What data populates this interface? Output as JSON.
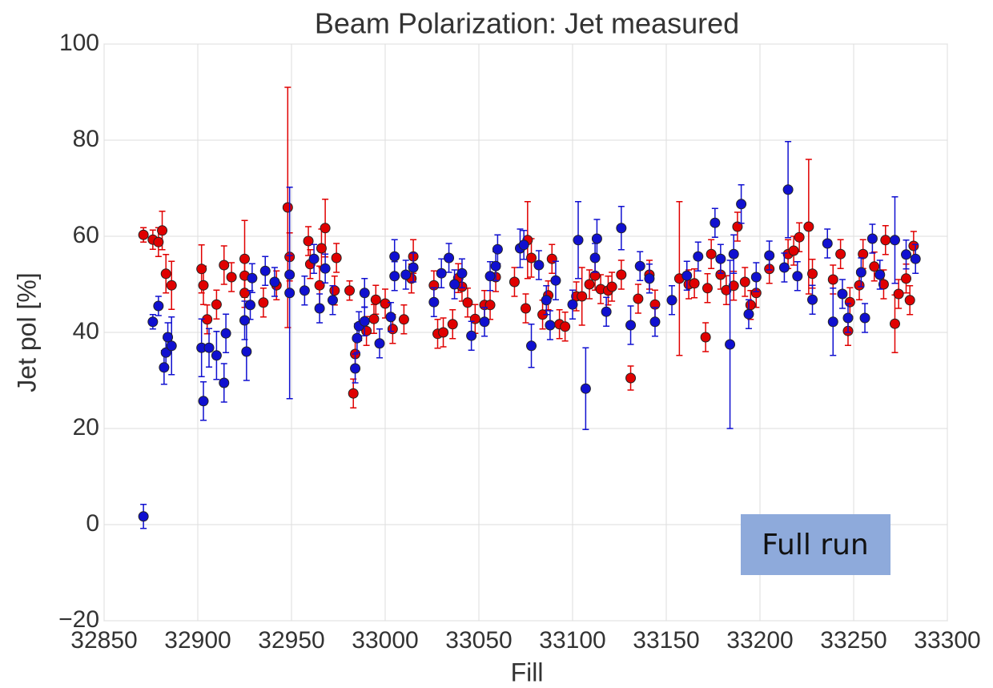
{
  "chart_data": {
    "type": "scatter",
    "title": "Beam Polarization: Jet measured",
    "xlabel": "Fill",
    "ylabel": "Jet pol [%]",
    "annotation": "Full run",
    "xlim": [
      32850,
      33300
    ],
    "xticks": [
      32850,
      32900,
      32950,
      33000,
      33050,
      33100,
      33150,
      33200,
      33250,
      33300
    ],
    "ylim": [
      -20,
      100
    ],
    "yticks": [
      {
        "value": -20,
        "label": "−20"
      },
      0,
      20,
      40,
      60,
      80,
      100
    ],
    "grid": true,
    "series": [
      {
        "color": "#e00000",
        "x": [
          32871,
          32876,
          32879,
          32881,
          32883,
          32886,
          32902,
          32903,
          32905,
          32910,
          32914,
          32918,
          32925,
          32925,
          32925,
          32935,
          32942,
          32948,
          32949,
          32959,
          32960,
          32965,
          32966,
          32968,
          32973,
          32974,
          32981,
          32983,
          32984,
          32990,
          32994,
          32995,
          33000,
          33004,
          33010,
          33014,
          33015,
          33026,
          33028,
          33031,
          33036,
          33039,
          33041,
          33044,
          33048,
          33053,
          33056,
          33059,
          33069,
          33075,
          33076,
          33078,
          33084,
          33087,
          33089,
          33093,
          33096,
          33102,
          33105,
          33109,
          33112,
          33115,
          33119,
          33121,
          33126,
          33131,
          33135,
          33141,
          33144,
          33157,
          33162,
          33165,
          33171,
          33172,
          33174,
          33179,
          33182,
          33186,
          33188,
          33192,
          33195,
          33198,
          33205,
          33215,
          33218,
          33221,
          33226,
          33228,
          33239,
          33243,
          33247,
          33248,
          33253,
          33255,
          33261,
          33266,
          33267,
          33272,
          33274,
          33278,
          33280,
          33282
        ],
        "values": [
          60.3,
          59.3,
          58.8,
          61.2,
          52.2,
          49.8,
          53.2,
          49.8,
          42.7,
          45.8,
          54,
          51.5,
          51.8,
          55.3,
          48.2,
          46.2,
          49.8,
          66,
          55.7,
          59,
          54.2,
          49.8,
          57.5,
          61.7,
          48.7,
          55.5,
          48.7,
          27.3,
          35.5,
          40.3,
          42.8,
          46.8,
          46,
          40.7,
          42.7,
          51.2,
          55.8,
          49.8,
          39.7,
          40,
          41.7,
          51.3,
          49.5,
          46.2,
          42.8,
          45.7,
          45.7,
          51.5,
          50.5,
          45,
          59.2,
          55.5,
          43.7,
          47.7,
          55.3,
          41.7,
          41.2,
          47.5,
          47.5,
          50,
          51.8,
          49,
          48.7,
          49.5,
          52,
          30.5,
          47,
          52,
          45.8,
          51.2,
          50,
          50.2,
          39,
          49.2,
          56.3,
          52,
          48.8,
          49.7,
          62,
          50.5,
          45.7,
          48.2,
          53.2,
          56.3,
          57,
          59.8,
          62,
          52.2,
          51,
          56.3,
          40.3,
          46.3,
          49.8,
          56.3,
          53.7,
          50,
          59.2,
          41.8,
          48,
          51.2,
          46.7,
          58
        ],
        "errors": [
          1.5,
          2,
          3,
          4,
          4,
          5,
          5,
          4,
          3,
          3,
          4,
          3,
          4,
          8,
          3,
          3,
          3,
          25,
          5,
          3,
          3,
          4,
          4,
          6,
          3,
          3,
          2,
          3,
          3,
          3,
          3,
          3,
          3,
          3,
          3,
          3,
          3.5,
          3,
          3,
          3,
          3,
          3,
          3,
          3,
          3,
          3,
          3,
          3,
          3,
          3,
          8,
          4,
          3,
          3,
          3,
          3,
          3,
          3,
          6,
          3,
          3,
          3,
          3,
          3,
          3,
          2.5,
          3,
          3,
          3,
          16,
          3,
          3,
          3,
          3,
          3,
          3,
          3,
          3,
          3,
          3,
          3,
          3,
          3,
          3,
          3,
          3,
          14,
          3,
          3,
          3,
          3,
          3,
          3,
          3,
          3,
          3,
          3,
          6,
          3,
          3,
          3,
          3
        ]
      },
      {
        "color": "#1010d0",
        "x": [
          32871,
          32876,
          32879,
          32882,
          32883,
          32884,
          32886,
          32903,
          32902,
          32906,
          32910,
          32914,
          32915,
          32926,
          32925,
          32928,
          32929,
          32936,
          32941,
          32949,
          32949,
          32957,
          32962,
          32965,
          32968,
          32972,
          32984,
          32985,
          32986,
          32989,
          32989,
          32997,
          33003,
          33005,
          33005,
          33011,
          33015,
          33026,
          33030,
          33034,
          33037,
          33041,
          33046,
          33053,
          33056,
          33059,
          33060,
          33072,
          33074,
          33078,
          33082,
          33086,
          33088,
          33091,
          33100,
          33103,
          33107,
          33112,
          33113,
          33118,
          33126,
          33131,
          33136,
          33141,
          33144,
          33153,
          33161,
          33167,
          33176,
          33179,
          33184,
          33186,
          33190,
          33194,
          33198,
          33205,
          33213,
          33215,
          33220,
          33228,
          33236,
          33239,
          33244,
          33247,
          33254,
          33256,
          33260,
          33264,
          33272,
          33278,
          33283
        ],
        "values": [
          1.7,
          42.2,
          45.5,
          32.7,
          35.8,
          39,
          37.2,
          25.7,
          36.8,
          36.8,
          35.2,
          29.5,
          39.8,
          36,
          42.5,
          45.7,
          51.3,
          52.8,
          50.5,
          48.2,
          52,
          48.7,
          55.3,
          45,
          53.3,
          46.7,
          32.5,
          38.8,
          41.3,
          42.3,
          48.2,
          37.7,
          43.2,
          55.8,
          51.7,
          52,
          53.5,
          46.3,
          52.3,
          55.5,
          50,
          52.3,
          39.3,
          42.2,
          51.7,
          53.8,
          57.3,
          57.5,
          58.2,
          37.2,
          54,
          46.7,
          41.5,
          50.8,
          45.8,
          59.2,
          28.3,
          55.5,
          59.5,
          44.3,
          61.7,
          41.5,
          53.8,
          51.2,
          42.2,
          46.7,
          51.8,
          55.8,
          62.8,
          55.3,
          37.5,
          56.3,
          66.7,
          43.8,
          51.5,
          56,
          53.5,
          69.7,
          51.7,
          46.8,
          58.5,
          42.2,
          48,
          43,
          52.5,
          43,
          59.5,
          52,
          59.2,
          56.2,
          55.3
        ],
        "errors": [
          2.5,
          1.5,
          2,
          3.5,
          3,
          3,
          6,
          4,
          6,
          4,
          5,
          4,
          4,
          6,
          4,
          3,
          3,
          3,
          3,
          22,
          4,
          3,
          3,
          3,
          3,
          3,
          3,
          3,
          3,
          3,
          3,
          3,
          3,
          3.5,
          3,
          3,
          3,
          3,
          3,
          3,
          3,
          3,
          3,
          3,
          3,
          3,
          3,
          4,
          3,
          4.5,
          3,
          3,
          3,
          4,
          3,
          8,
          8.5,
          3,
          4,
          3,
          4.5,
          4,
          3,
          3,
          3,
          3,
          3,
          3,
          3,
          3,
          17.5,
          4,
          4,
          3,
          3,
          3,
          3,
          10,
          3,
          3,
          3,
          7,
          3,
          3,
          3,
          3,
          3,
          3,
          9,
          3,
          3
        ]
      }
    ]
  }
}
